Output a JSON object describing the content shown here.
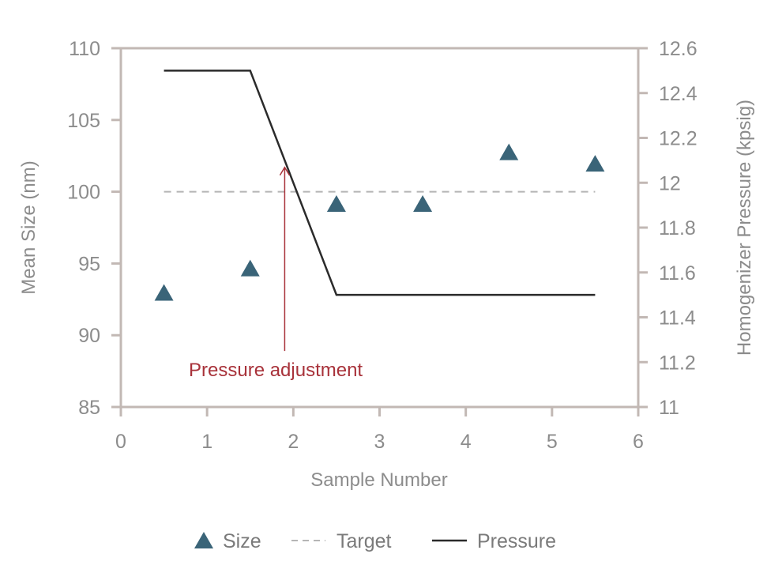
{
  "chart_data": {
    "type": "scatter+line",
    "title": "",
    "xlabel": "Sample Number",
    "ylabel_left": "Mean Size (nm)",
    "ylabel_right": "Homogenizer Pressure (kpsig)",
    "xlim": [
      0,
      6
    ],
    "ylim_left": [
      85,
      110
    ],
    "ylim_right": [
      11,
      12.6
    ],
    "x_ticks": [
      "0",
      "1",
      "2",
      "3",
      "4",
      "5",
      "6"
    ],
    "y_left_ticks": [
      "85",
      "90",
      "95",
      "100",
      "105",
      "110"
    ],
    "y_right_ticks": [
      "11",
      "11.2",
      "11.4",
      "11.6",
      "11.8",
      "12",
      "12.2",
      "12.4",
      "12.6"
    ],
    "grid": false,
    "legend_position": "bottom",
    "series": [
      {
        "name": "Size",
        "kind": "markers",
        "marker": "triangle",
        "color": "#3a6478",
        "axis": "left",
        "x": [
          0.5,
          1.5,
          2.5,
          3.5,
          4.5,
          5.5
        ],
        "y": [
          92.9,
          94.6,
          99.1,
          99.1,
          102.7,
          101.9
        ]
      },
      {
        "name": "Target",
        "kind": "dashed-line",
        "color": "#b5b5b5",
        "axis": "left",
        "x": [
          0.5,
          5.5
        ],
        "y": [
          100,
          100
        ]
      },
      {
        "name": "Pressure",
        "kind": "line",
        "color": "#2b2b2b",
        "axis": "right",
        "x": [
          0.5,
          1.5,
          2.5,
          5.5
        ],
        "y": [
          12.5,
          12.5,
          11.5,
          11.5
        ]
      }
    ],
    "annotations": [
      {
        "text": "Pressure adjustment",
        "color": "#a8323a",
        "arrow_x": 1.9,
        "arrow_y_from": 88.9,
        "arrow_y_to": 101.7
      }
    ],
    "axis_color": "#c2b8b4"
  }
}
